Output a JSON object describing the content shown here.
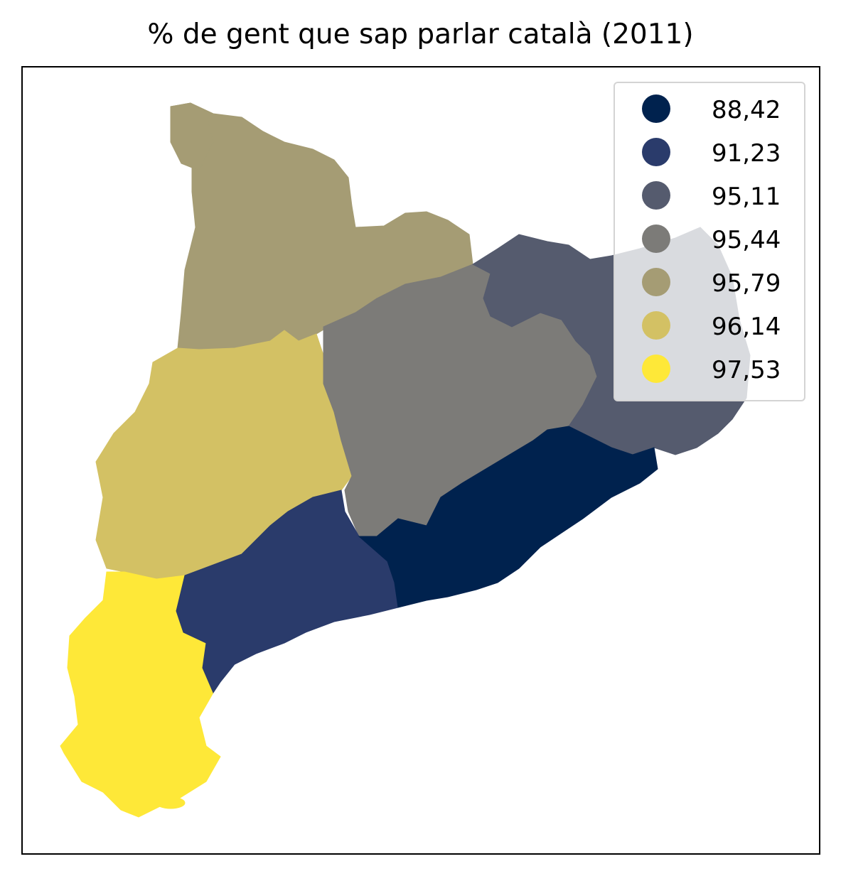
{
  "title": "% de gent que sap parlar català (2011)",
  "legend": [
    {
      "label": "88,42",
      "color": "#00224e"
    },
    {
      "label": "91,23",
      "color": "#2a3b6b"
    },
    {
      "label": "95,11",
      "color": "#555b6e"
    },
    {
      "label": "95,44",
      "color": "#7c7b78"
    },
    {
      "label": "95,79",
      "color": "#a59c74"
    },
    {
      "label": "96,14",
      "color": "#d3c164"
    },
    {
      "label": "97,53",
      "color": "#fee838"
    }
  ],
  "regions": [
    {
      "id": "pyrenees-west",
      "color": "#a59c74"
    },
    {
      "id": "ponent",
      "color": "#d3c164"
    },
    {
      "id": "terres-ebre",
      "color": "#fee838"
    },
    {
      "id": "central",
      "color": "#7c7b78"
    },
    {
      "id": "girona",
      "color": "#555b6e"
    },
    {
      "id": "camp-tarragona",
      "color": "#2a3b6b"
    },
    {
      "id": "barcelona",
      "color": "#00224e"
    }
  ]
}
